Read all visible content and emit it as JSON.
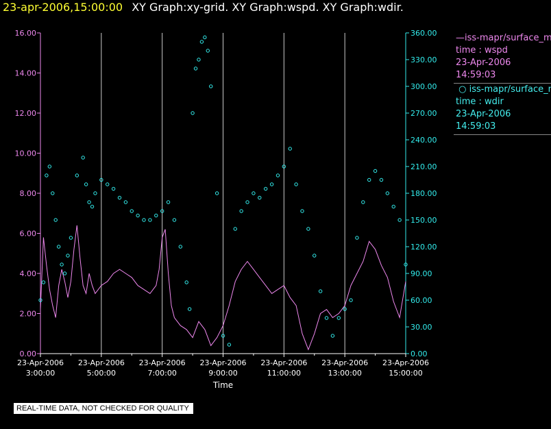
{
  "header": {
    "timestamp": "23-apr-2006,15:00:00",
    "title": "XY Graph:xy-grid.  XY Graph:wspd.  XY Graph:wdir."
  },
  "disclaimer": "REAL-TIME DATA, NOT CHECKED FOR QUALITY",
  "legend": [
    {
      "head": "iss-mapr/surface_met",
      "label": "time : wspd",
      "date": "23-Apr-2006",
      "time": "14:59:03"
    },
    {
      "head": "iss-mapr/surface_met",
      "label": "time : wdir",
      "date": "23-Apr-2006",
      "time": "14:59:03"
    }
  ],
  "colors": {
    "wspd": "#ee88ee",
    "wdir": "#33eeee",
    "grid": "#cccccc",
    "text": "#ffffff"
  },
  "chart_data": {
    "type": "line",
    "title": "XY Graph:xy-grid.  XY Graph:wspd.  XY Graph:wdir.",
    "xlabel": "Time",
    "ylabel_left": "",
    "ylabel_right": "",
    "xlim": [
      3.0,
      15.0
    ],
    "ylim_left": [
      0,
      16
    ],
    "ylim_right": [
      0,
      360
    ],
    "xticks": [
      {
        "value": 3,
        "date": "23-Apr-2006",
        "time": "3:00:00"
      },
      {
        "value": 5,
        "date": "23-Apr-2006",
        "time": "5:00:00"
      },
      {
        "value": 7,
        "date": "23-Apr-2006",
        "time": "7:00:00"
      },
      {
        "value": 9,
        "date": "23-Apr-2006",
        "time": "9:00:00"
      },
      {
        "value": 11,
        "date": "23-Apr-2006",
        "time": "11:00:00"
      },
      {
        "value": 13,
        "date": "23-Apr-2006",
        "time": "13:00:00"
      },
      {
        "value": 15,
        "date": "23-Apr-2006",
        "time": "15:00:00"
      }
    ],
    "yticks_left": [
      "0.00",
      "2.00",
      "4.00",
      "6.00",
      "8.00",
      "10.00",
      "12.00",
      "14.00",
      "16.00"
    ],
    "yticks_right": [
      "0.00",
      "30.00",
      "60.00",
      "90.00",
      "120.00",
      "150.00",
      "180.00",
      "210.00",
      "240.00",
      "270.00",
      "300.00",
      "330.00",
      "360.00"
    ],
    "series": [
      {
        "name": "wspd",
        "axis": "left",
        "style": "line",
        "x": [
          3.0,
          3.1,
          3.2,
          3.3,
          3.4,
          3.5,
          3.6,
          3.7,
          3.8,
          3.9,
          4.0,
          4.1,
          4.2,
          4.3,
          4.4,
          4.5,
          4.6,
          4.7,
          4.8,
          4.9,
          5.0,
          5.2,
          5.4,
          5.6,
          5.8,
          6.0,
          6.2,
          6.4,
          6.6,
          6.8,
          6.9,
          7.0,
          7.1,
          7.2,
          7.3,
          7.4,
          7.6,
          7.8,
          8.0,
          8.2,
          8.4,
          8.6,
          8.8,
          9.0,
          9.2,
          9.4,
          9.6,
          9.8,
          10.0,
          10.2,
          10.4,
          10.6,
          10.8,
          11.0,
          11.2,
          11.4,
          11.6,
          11.8,
          12.0,
          12.2,
          12.4,
          12.6,
          12.8,
          13.0,
          13.2,
          13.4,
          13.6,
          13.8,
          14.0,
          14.2,
          14.4,
          14.6,
          14.8,
          15.0
        ],
        "y": [
          2.2,
          5.8,
          4.4,
          3.2,
          2.4,
          1.8,
          3.4,
          4.2,
          3.6,
          2.8,
          3.6,
          5.2,
          6.4,
          4.8,
          3.4,
          3.0,
          4.0,
          3.4,
          3.0,
          3.2,
          3.4,
          3.6,
          4.0,
          4.2,
          4.0,
          3.8,
          3.4,
          3.2,
          3.0,
          3.4,
          4.2,
          5.8,
          6.2,
          4.0,
          2.4,
          1.8,
          1.4,
          1.2,
          0.8,
          1.6,
          1.2,
          0.4,
          0.8,
          1.4,
          2.4,
          3.6,
          4.2,
          4.6,
          4.2,
          3.8,
          3.4,
          3.0,
          3.2,
          3.4,
          2.8,
          2.4,
          1.0,
          0.2,
          1.0,
          2.0,
          2.2,
          1.8,
          2.0,
          2.4,
          3.4,
          4.0,
          4.6,
          5.6,
          5.2,
          4.4,
          3.8,
          2.6,
          1.8,
          3.6
        ]
      },
      {
        "name": "wdir",
        "axis": "right",
        "style": "points",
        "x": [
          3.0,
          3.1,
          3.2,
          3.3,
          3.4,
          3.5,
          3.6,
          3.7,
          3.8,
          3.9,
          4.0,
          4.2,
          4.4,
          4.5,
          4.6,
          4.7,
          4.8,
          5.0,
          5.2,
          5.4,
          5.6,
          5.8,
          6.0,
          6.2,
          6.4,
          6.6,
          6.8,
          7.0,
          7.2,
          7.4,
          7.6,
          7.8,
          7.9,
          8.0,
          8.1,
          8.2,
          8.3,
          8.4,
          8.5,
          8.6,
          8.8,
          9.0,
          9.2,
          9.4,
          9.6,
          9.8,
          10.0,
          10.2,
          10.4,
          10.6,
          10.8,
          11.0,
          11.2,
          11.4,
          11.6,
          11.8,
          12.0,
          12.2,
          12.4,
          12.6,
          12.8,
          13.0,
          13.2,
          13.4,
          13.6,
          13.8,
          14.0,
          14.2,
          14.4,
          14.6,
          14.8,
          15.0
        ],
        "y": [
          60,
          80,
          200,
          210,
          180,
          150,
          120,
          100,
          90,
          110,
          130,
          200,
          220,
          190,
          170,
          165,
          180,
          195,
          190,
          185,
          175,
          170,
          160,
          155,
          150,
          150,
          155,
          160,
          170,
          150,
          120,
          80,
          50,
          270,
          320,
          330,
          350,
          355,
          340,
          300,
          180,
          20,
          10,
          140,
          160,
          170,
          180,
          175,
          185,
          190,
          200,
          210,
          230,
          190,
          160,
          140,
          110,
          70,
          40,
          20,
          40,
          50,
          60,
          130,
          170,
          195,
          205,
          195,
          180,
          165,
          150,
          100
        ]
      }
    ]
  }
}
